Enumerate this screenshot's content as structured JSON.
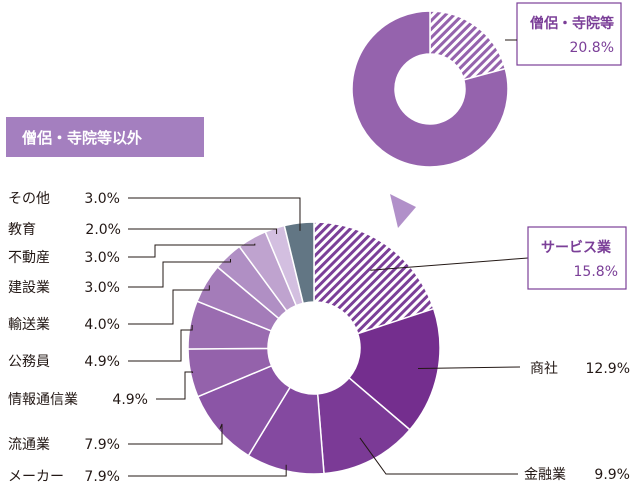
{
  "chart_data": [
    {
      "type": "pie",
      "donut": true,
      "title": "",
      "slices": [
        {
          "label": "僧侶・寺院等",
          "value": 20.8,
          "pct_text": "20.8%",
          "pattern": "hatch"
        },
        {
          "label": "僧侶・寺院等以外",
          "value": 79.2,
          "pattern": "solid"
        }
      ]
    },
    {
      "type": "pie",
      "donut": true,
      "title": "僧侶・寺院等以外",
      "slices": [
        {
          "label": "サービス業",
          "value": 15.8,
          "pct_text": "15.8%",
          "color": "#7b3f98",
          "pattern": "hatch"
        },
        {
          "label": "商社",
          "value": 12.9,
          "pct_text": "12.9%",
          "color": "#742e8e"
        },
        {
          "label": "金融業",
          "value": 9.9,
          "pct_text": "9.9%",
          "color": "#7b3a96"
        },
        {
          "label": "メーカー",
          "value": 7.9,
          "pct_text": "7.9%",
          "color": "#8449a0"
        },
        {
          "label": "流通業",
          "value": 7.9,
          "pct_text": "7.9%",
          "color": "#8b55a6"
        },
        {
          "label": "情報通信業",
          "value": 4.9,
          "pct_text": "4.9%",
          "color": "#9462ab"
        },
        {
          "label": "公務員",
          "value": 4.9,
          "pct_text": "4.9%",
          "color": "#9a6cb0"
        },
        {
          "label": "輸送業",
          "value": 4.0,
          "pct_text": "4.0%",
          "color": "#a47cb9"
        },
        {
          "label": "建設業",
          "value": 3.0,
          "pct_text": "3.0%",
          "color": "#b08fc4"
        },
        {
          "label": "不動産",
          "value": 3.0,
          "pct_text": "3.0%",
          "color": "#bfa3cf"
        },
        {
          "label": "教育",
          "value": 2.0,
          "pct_text": "2.0%",
          "color": "#d3bfe0"
        },
        {
          "label": "その他",
          "value": 3.0,
          "pct_text": "3.0%",
          "color": "#627684"
        }
      ]
    }
  ],
  "colors": {
    "accent": "#7b3f98",
    "top_donut": "#9563ad",
    "banner": "#a47fbf",
    "arrow": "#b190c9",
    "leader": "#231815"
  }
}
